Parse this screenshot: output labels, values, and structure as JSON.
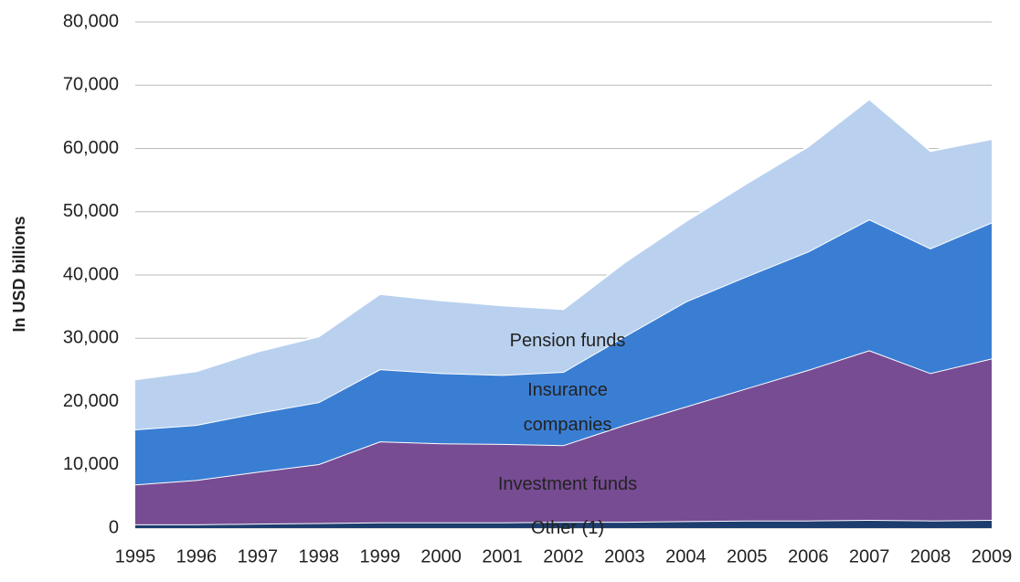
{
  "chart_data": {
    "type": "stacked_area",
    "y_label": "In USD billions",
    "categories": [
      "1995",
      "1996",
      "1997",
      "1998",
      "1999",
      "2000",
      "2001",
      "2002",
      "2003",
      "2004",
      "2005",
      "2006",
      "2007",
      "2008",
      "2009"
    ],
    "series": [
      {
        "name": "Other (1)",
        "color": "#1c3d6e",
        "values": [
          600,
          600,
          700,
          800,
          900,
          900,
          900,
          1000,
          1000,
          1100,
          1200,
          1200,
          1300,
          1200,
          1300
        ]
      },
      {
        "name": "Investment funds",
        "color": "#774c93",
        "values": [
          6300,
          7000,
          8200,
          9300,
          12800,
          12500,
          12400,
          12100,
          15300,
          18100,
          20900,
          23800,
          26800,
          23300,
          25500
        ]
      },
      {
        "name": "Insurance companies",
        "color": "#3a7ed4",
        "values": [
          8700,
          8700,
          9300,
          9800,
          11400,
          11100,
          10900,
          11600,
          14000,
          16600,
          17700,
          18700,
          20700,
          19700,
          21500
        ]
      },
      {
        "name": "Pension funds",
        "color": "#b9d1ef",
        "values": [
          7900,
          8500,
          9700,
          10400,
          11900,
          11500,
          11000,
          9900,
          11700,
          12700,
          14700,
          16600,
          19000,
          15400,
          13200
        ]
      }
    ],
    "ylim": [
      0,
      80000
    ],
    "yticks": [
      0,
      {
        "value": 10000,
        "label": "10,000"
      },
      {
        "value": 20000,
        "label": "20,000"
      },
      {
        "value": 30000,
        "label": "30,000"
      },
      {
        "value": 40000,
        "label": "40,000"
      },
      {
        "value": 50000,
        "label": "50,000"
      },
      {
        "value": 60000,
        "label": "60,000"
      },
      {
        "value": 70000,
        "label": "70,000"
      },
      {
        "value": 80000,
        "label": "80,000"
      }
    ],
    "grid": true
  }
}
